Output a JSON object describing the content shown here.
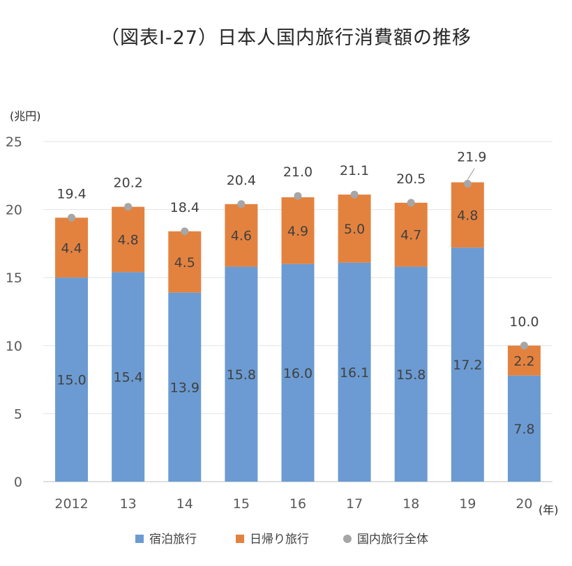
{
  "chart_data": {
    "type": "bar",
    "stacked": true,
    "title": "（図表Ⅰ-27）日本人国内旅行消費額の推移",
    "y_unit": "(兆円)",
    "x_unit": "(年)",
    "ylim": [
      0,
      25
    ],
    "yticks": [
      0,
      5,
      10,
      15,
      20,
      25
    ],
    "grid": true,
    "legend_position": "bottom",
    "categories": [
      "2012",
      "13",
      "14",
      "15",
      "16",
      "17",
      "18",
      "19",
      "20"
    ],
    "series": [
      {
        "name": "宿泊旅行",
        "color": "#6b9bd2",
        "values": [
          15.0,
          15.4,
          13.9,
          15.8,
          16.0,
          16.1,
          15.8,
          17.2,
          7.8
        ],
        "labels": [
          "15.0",
          "15.4",
          "13.9",
          "15.8",
          "16.0",
          "16.1",
          "15.8",
          "17.2",
          "7.8"
        ]
      },
      {
        "name": "日帰り旅行",
        "color": "#e3823f",
        "values": [
          4.4,
          4.8,
          4.5,
          4.6,
          4.9,
          5.0,
          4.7,
          4.8,
          2.2
        ],
        "labels": [
          "4.4",
          "4.8",
          "4.5",
          "4.6",
          "4.9",
          "5.0",
          "4.7",
          "4.8",
          "2.2"
        ]
      }
    ],
    "total": {
      "name": "国内旅行全体",
      "color": "#a6a6a6",
      "values": [
        19.4,
        20.2,
        18.4,
        20.4,
        21.0,
        21.1,
        20.5,
        21.9,
        10.0
      ],
      "labels": [
        "19.4",
        "20.2",
        "18.4",
        "20.4",
        "21.0",
        "21.1",
        "20.5",
        "21.9",
        "10.0"
      ]
    }
  }
}
